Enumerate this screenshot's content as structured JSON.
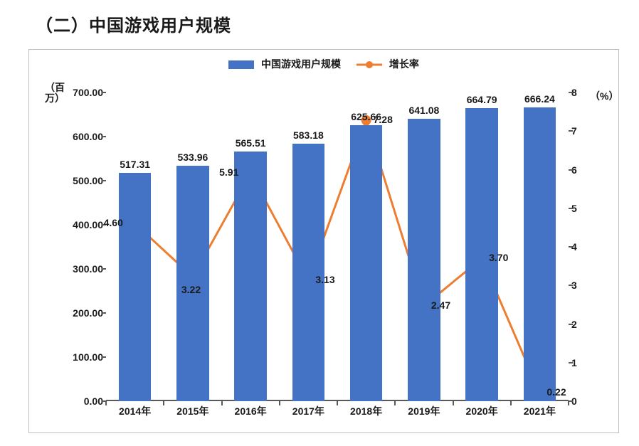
{
  "page": {
    "title": "（二）中国游戏用户规模",
    "background_color": "#ffffff",
    "chart_border_color": "#bdbdbd"
  },
  "legend": {
    "series1_label": "中国游戏用户规模",
    "series2_label": "增长率"
  },
  "axes": {
    "y_left": {
      "title": "（百万）",
      "min": 0,
      "max": 700,
      "tick_step": 100,
      "tick_decimals": 2,
      "color": "#1a1a1a",
      "fontsize": 14
    },
    "y_right": {
      "title": "（%）",
      "min": 0,
      "max": 8,
      "tick_step": 1,
      "tick_decimals": 0,
      "color": "#1a1a1a",
      "fontsize": 14
    },
    "x": {
      "categories": [
        "2014年",
        "2015年",
        "2016年",
        "2017年",
        "2018年",
        "2019年",
        "2020年",
        "2021年"
      ],
      "fontsize": 14,
      "color": "#1a1a1a"
    },
    "axis_line_color": "#595959"
  },
  "series": {
    "bars": {
      "type": "bar",
      "values": [
        517.31,
        533.96,
        565.51,
        583.18,
        625.66,
        641.08,
        664.79,
        666.24
      ],
      "color": "#4472c4",
      "bar_width_fraction": 0.56,
      "label_color": "#1a1a1a",
      "label_fontsize": 14,
      "label_decimals": 2
    },
    "line": {
      "type": "line",
      "values": [
        4.6,
        3.22,
        5.91,
        3.13,
        7.28,
        2.47,
        3.7,
        0.22
      ],
      "stroke_color": "#ed7d31",
      "stroke_width": 3,
      "marker_color": "#ed7d31",
      "marker_radius": 7,
      "label_color": "#1a1a1a",
      "label_fontsize": 14,
      "label_decimals": 2,
      "label_positions": [
        "left",
        "below",
        "left",
        "right",
        "right",
        "right",
        "right",
        "right"
      ]
    }
  }
}
